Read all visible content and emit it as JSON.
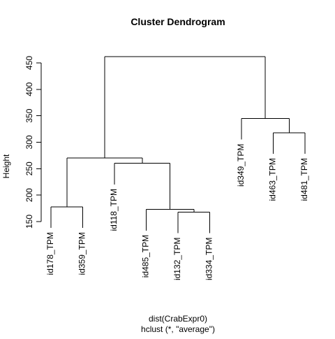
{
  "chart_data": {
    "type": "dendrogram",
    "title": "Cluster Dendrogram",
    "ylabel": "Height",
    "xlabel": "dist(CrabExpr0)",
    "subtitle": "hclust (*, \"average\")",
    "ylim": [
      150,
      475
    ],
    "y_ticks": [
      150,
      200,
      250,
      300,
      350,
      400,
      450
    ],
    "label_offset": 40,
    "leaves": [
      "id178_TPM",
      "id359_TPM",
      "id118_TPM",
      "id485_TPM",
      "id132_TPM",
      "id334_TPM",
      "id349_TPM",
      "id463_TPM",
      "id481_TPM"
    ],
    "merges": [
      {
        "id": "m1",
        "left": "id132_TPM",
        "right": "id334_TPM",
        "height": 168
      },
      {
        "id": "m2",
        "left": "id485_TPM",
        "right": "m1",
        "height": 173
      },
      {
        "id": "m3",
        "left": "id178_TPM",
        "right": "id359_TPM",
        "height": 178
      },
      {
        "id": "m4",
        "left": "id118_TPM",
        "right": "m2",
        "height": 260
      },
      {
        "id": "m5",
        "left": "m3",
        "right": "m4",
        "height": 270
      },
      {
        "id": "m6",
        "left": "id463_TPM",
        "right": "id481_TPM",
        "height": 318
      },
      {
        "id": "m7",
        "left": "id349_TPM",
        "right": "m6",
        "height": 345
      },
      {
        "id": "m8",
        "left": "m5",
        "right": "m7",
        "height": 462
      }
    ]
  }
}
